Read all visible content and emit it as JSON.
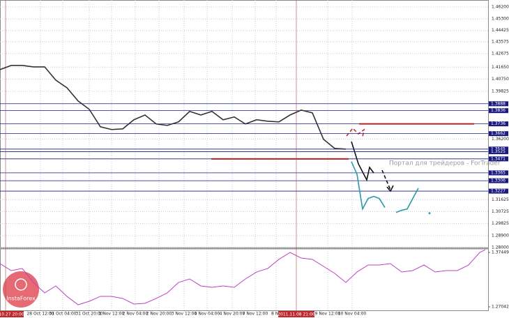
{
  "chart_data": [
    {
      "type": "line",
      "xlim": [
        0,
        87.5
      ],
      "ylim": [
        1.28,
        1.4673
      ],
      "xticks": [
        {
          "value": 7.25,
          "label": "28 Oct 12:00"
        },
        {
          "value": 11.25,
          "label": "31 Oct 04:00"
        },
        {
          "value": 16,
          "label": "31 Oct 20:00"
        },
        {
          "value": 20,
          "label": "1 Nov 12:00"
        },
        {
          "value": 24.25,
          "label": "2 Nov 04:00"
        },
        {
          "value": 28.5,
          "label": "2 Nov 20:00"
        },
        {
          "value": 33,
          "label": "3 Nov 12:00"
        },
        {
          "value": 37.125,
          "label": "4 Nov 04:00"
        },
        {
          "value": 41.625,
          "label": "4 Nov 20:00"
        },
        {
          "value": 45.75,
          "label": "7 Nov 12:00"
        },
        {
          "value": 49.5,
          "label": "8 No"
        },
        {
          "value": 58.75,
          "label": "9 Nov 12:00"
        },
        {
          "value": 63.125,
          "label": "10 Nov 04:00"
        }
      ],
      "yticks": [
        {
          "value": 1.462,
          "label": "1.46200"
        },
        {
          "value": 1.453,
          "label": "1.45300"
        },
        {
          "value": 1.44425,
          "label": "1.44425"
        },
        {
          "value": 1.43575,
          "label": "1.43575"
        },
        {
          "value": 1.42675,
          "label": "1.42675"
        },
        {
          "value": 1.4165,
          "label": "1.41650"
        },
        {
          "value": 1.4075,
          "label": "1.40750"
        },
        {
          "value": 1.39825,
          "label": "1.39825"
        },
        {
          "value": 1.362,
          "label": "1.36200"
        },
        {
          "value": 1.31625,
          "label": "1.31625"
        },
        {
          "value": 1.30725,
          "label": "1.30725"
        },
        {
          "value": 1.29825,
          "label": "1.29825"
        },
        {
          "value": 1.289,
          "label": "1.28900"
        },
        {
          "value": 1.28,
          "label": "1.28000"
        }
      ],
      "grid": true,
      "levels": [
        1.3888,
        1.3836,
        1.3736,
        1.3662,
        1.3545,
        1.3525,
        1.3471,
        1.3365,
        1.3306,
        1.3227
      ],
      "level_color": "#1a1a80",
      "red_lines": [
        {
          "value": 1.3736,
          "x": [
            64.375,
            85
          ]
        },
        {
          "value": 1.3471,
          "x": [
            37.875,
            62.5
          ]
        }
      ],
      "red_color": "#b22222",
      "cursors": [
        {
          "value": 1,
          "label": "2011.10.27 20:00"
        },
        {
          "value": 53.125,
          "label": "2011.11.08 21:00"
        }
      ],
      "series": [
        {
          "color": "#333333",
          "x": [
            0,
            2,
            4,
            6,
            8,
            10,
            12,
            14,
            16,
            18,
            20,
            22,
            24,
            26,
            28,
            30,
            32,
            34,
            36,
            38,
            40,
            42,
            44,
            46,
            48,
            50,
            52,
            54,
            56,
            58,
            60,
            62
          ],
          "values": [
            1.4146,
            1.4178,
            1.4178,
            1.4167,
            1.4167,
            1.4067,
            1.4009,
            1.3909,
            1.3846,
            1.3714,
            1.3693,
            1.3698,
            1.3767,
            1.3803,
            1.3735,
            1.3724,
            1.3751,
            1.383,
            1.3803,
            1.383,
            1.3767,
            1.3788,
            1.3735,
            1.3767,
            1.3756,
            1.3751,
            1.3803,
            1.384,
            1.3819,
            1.3619,
            1.355,
            1.3545
          ]
        },
        {
          "color": "#2a9aa8",
          "x": [
            63,
            64,
            65,
            66,
            67,
            68,
            69,
            70,
            71,
            72,
            73,
            74,
            75,
            76,
            77
          ],
          "values": [
            1.345,
            1.3355,
            1.3092,
            1.3171,
            1.3187,
            1.3171,
            1.3103,
            null,
            1.3066,
            1.3082,
            1.3092,
            1.3171,
            1.325,
            null,
            1.306
          ]
        }
      ]
    },
    {
      "type": "line",
      "xlim": [
        0,
        87.5
      ],
      "ylim": [
        1.26375,
        1.38116
      ],
      "yticks": [
        1.37449,
        1.27042
      ],
      "series": [
        {
          "color": "#c040c0",
          "x": [
            0,
            2,
            4,
            6,
            8,
            10,
            12,
            14,
            16,
            18,
            20,
            22,
            24,
            26,
            28,
            30,
            32,
            34,
            36,
            38,
            40,
            42,
            44,
            46,
            48,
            50,
            52,
            54,
            56,
            58,
            60,
            62,
            64,
            66,
            68,
            70,
            72,
            74,
            76,
            78,
            80,
            82,
            84,
            86,
            87
          ],
          "values": [
            1.3531,
            1.3398,
            1.3438,
            1.3171,
            1.2971,
            1.3105,
            1.2905,
            1.2744,
            1.2811,
            1.2905,
            1.2905,
            1.2865,
            1.2758,
            1.2771,
            1.2865,
            1.2971,
            1.3171,
            1.3238,
            1.3105,
            1.3078,
            1.3105,
            1.3078,
            1.3238,
            1.3371,
            1.3438,
            1.3612,
            1.3745,
            1.3638,
            1.3612,
            1.3478,
            1.3345,
            1.3171,
            1.3371,
            1.3505,
            1.3505,
            1.3531,
            1.3371,
            1.3398,
            1.3505,
            1.3371,
            1.3398,
            1.3398,
            1.3505,
            1.3745,
            1.3798
          ]
        }
      ]
    }
  ],
  "watermark": "Портал для трейдеров - ForTrader",
  "logo": "InstaForex"
}
